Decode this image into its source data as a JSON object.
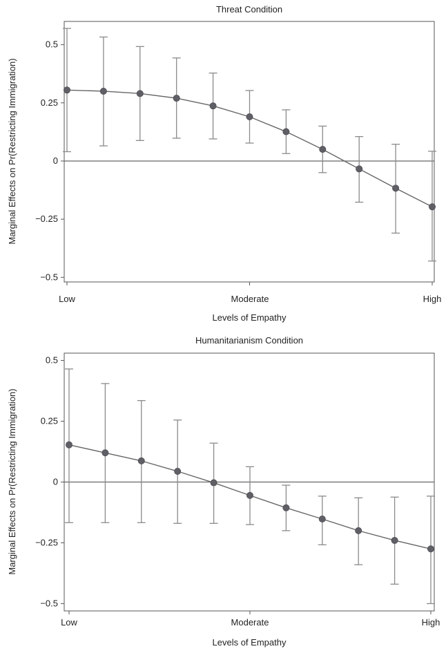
{
  "chart_data": [
    {
      "type": "line",
      "title": "Threat Condition",
      "xlabel": "Levels of Empathy",
      "ylabel": "Marginal Effects on Pr(Restricting Immigration)",
      "x_tick_labels": [
        "Low",
        "Moderate",
        "High"
      ],
      "y_ticks": [
        0.5,
        0.25,
        0,
        -0.25,
        -0.5
      ],
      "y_tick_labels": [
        "0.5",
        "0.25",
        "0",
        "−0.25",
        "−0.5"
      ],
      "ylim": [
        -0.52,
        0.6
      ],
      "xlim": [
        0,
        10
      ],
      "zero_line": true,
      "series": [
        {
          "x": [
            0,
            1,
            2,
            3,
            4,
            5,
            6,
            7,
            8,
            9,
            10
          ],
          "values": [
            0.305,
            0.3,
            0.29,
            0.27,
            0.237,
            0.19,
            0.126,
            0.05,
            -0.034,
            -0.117,
            -0.197
          ],
          "lower": [
            0.04,
            0.065,
            0.088,
            0.098,
            0.095,
            0.077,
            0.032,
            -0.05,
            -0.177,
            -0.31,
            -0.43
          ],
          "upper": [
            0.57,
            0.533,
            0.492,
            0.443,
            0.378,
            0.303,
            0.22,
            0.15,
            0.105,
            0.072,
            0.042
          ]
        }
      ]
    },
    {
      "type": "line",
      "title": "Humanitarianism Condition",
      "xlabel": "Levels of Empathy",
      "ylabel": "Marginal Effects on Pr(Restricting Immigration)",
      "x_tick_labels": [
        "Low",
        "Moderate",
        "High"
      ],
      "y_ticks": [
        0.5,
        0.25,
        0,
        -0.25,
        -0.5
      ],
      "y_tick_labels": [
        "0.5",
        "0.25",
        "0",
        "−0.25",
        "−0.5"
      ],
      "ylim": [
        -0.53,
        0.53
      ],
      "xlim": [
        0,
        10
      ],
      "zero_line": true,
      "series": [
        {
          "x": [
            0,
            1,
            2,
            3,
            4,
            5,
            6,
            7,
            8,
            9,
            10
          ],
          "values": [
            0.153,
            0.12,
            0.087,
            0.044,
            -0.003,
            -0.055,
            -0.106,
            -0.152,
            -0.2,
            -0.24,
            -0.275
          ],
          "lower": [
            -0.167,
            -0.167,
            -0.167,
            -0.17,
            -0.17,
            -0.175,
            -0.2,
            -0.258,
            -0.34,
            -0.42,
            -0.5
          ],
          "upper": [
            0.465,
            0.405,
            0.335,
            0.255,
            0.16,
            0.063,
            -0.013,
            -0.058,
            -0.065,
            -0.062,
            -0.058
          ]
        }
      ]
    }
  ]
}
